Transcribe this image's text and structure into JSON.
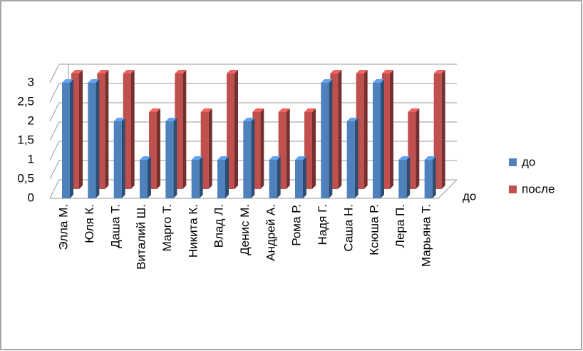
{
  "chart_data": {
    "type": "bar3d",
    "categories": [
      "Элла М.",
      "Юля К.",
      "Даша Т.",
      "Виталий Ш.",
      "Марго Т.",
      "Никита К.",
      "Влад Л.",
      "Денис М.",
      "Андрей А.",
      "Рома Р.",
      "Надя Г.",
      "Саша Н.",
      "Ксюша Р.",
      "Лера П.",
      "Марьяна Т."
    ],
    "series": [
      {
        "name": "до",
        "color": "#4f81bd",
        "values": [
          3,
          3,
          2,
          1,
          2,
          1,
          1,
          2,
          1,
          1,
          3,
          2,
          3,
          1,
          1
        ]
      },
      {
        "name": "после",
        "color": "#c0504d",
        "values": [
          3,
          3,
          3,
          2,
          3,
          2,
          3,
          2,
          2,
          2,
          3,
          3,
          3,
          2,
          3
        ]
      }
    ],
    "depth_axis_label": "до",
    "ylim": [
      0,
      3
    ],
    "yticks": [
      0,
      {
        "value": 0.5,
        "label": "0,5"
      },
      1,
      {
        "value": 1.5,
        "label": "1,5"
      },
      2,
      {
        "value": 2.5,
        "label": "2,5"
      },
      3
    ],
    "grid": true,
    "legend": "right"
  }
}
